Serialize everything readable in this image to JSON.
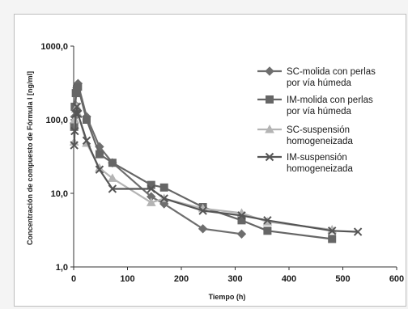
{
  "chart_data": {
    "type": "line",
    "title": "",
    "xlabel": "Tiempo (h)",
    "ylabel": "Concentración de compuesto de Fórmula I [ng/ml]",
    "xlim": [
      0,
      600
    ],
    "ylim": [
      1,
      1000
    ],
    "y_scale": "log",
    "x_ticks": [
      0,
      100,
      200,
      300,
      400,
      500,
      600
    ],
    "x_tick_labels": [
      "0",
      "100",
      "200",
      "300",
      "400",
      "500",
      "600"
    ],
    "y_ticks": [
      1,
      10,
      100,
      1000
    ],
    "y_tick_labels": [
      "1,0",
      "10,0",
      "100,0",
      "1000,0"
    ],
    "grid": false,
    "legend_position": "right",
    "series": [
      {
        "name_lines": [
          "SC-molida con perlas",
          "por vía húmeda"
        ],
        "color": "#6e6e6e",
        "marker": "diamond",
        "points": [
          [
            1,
            90
          ],
          [
            2,
            110
          ],
          [
            3,
            160
          ],
          [
            6,
            270
          ],
          [
            8,
            310
          ],
          [
            24,
            110
          ],
          [
            48,
            43
          ],
          [
            72,
            26
          ],
          [
            144,
            9
          ],
          [
            168,
            7.2
          ],
          [
            240,
            3.3
          ],
          [
            312,
            2.8
          ]
        ]
      },
      {
        "name_lines": [
          "IM-molida con perlas",
          "por vía húmeda"
        ],
        "color": "#666666",
        "marker": "square",
        "points": [
          [
            1,
            80
          ],
          [
            2,
            150
          ],
          [
            4,
            230
          ],
          [
            6,
            260
          ],
          [
            8,
            280
          ],
          [
            24,
            100
          ],
          [
            48,
            34
          ],
          [
            72,
            26
          ],
          [
            144,
            13
          ],
          [
            168,
            12
          ],
          [
            240,
            6.5
          ],
          [
            312,
            4.3
          ],
          [
            360,
            3.1
          ],
          [
            480,
            2.4
          ]
        ]
      },
      {
        "name_lines": [
          "SC-suspensión",
          "homogeneizada"
        ],
        "color": "#b4b4b4",
        "marker": "triangle",
        "points": [
          [
            1,
            50
          ],
          [
            2,
            100
          ],
          [
            4,
            140
          ],
          [
            6,
            150
          ],
          [
            8,
            120
          ],
          [
            24,
            48
          ],
          [
            48,
            22
          ],
          [
            72,
            16
          ],
          [
            144,
            7.5
          ],
          [
            168,
            8.5
          ],
          [
            240,
            6.2
          ],
          [
            312,
            5.4
          ],
          [
            360,
            4.1
          ],
          [
            480,
            3.2
          ]
        ]
      },
      {
        "name_lines": [
          "IM-suspensión",
          "homogeneizada"
        ],
        "color": "#555555",
        "marker": "x",
        "points": [
          [
            1,
            45
          ],
          [
            2,
            70
          ],
          [
            4,
            120
          ],
          [
            6,
            150
          ],
          [
            8,
            120
          ],
          [
            24,
            52
          ],
          [
            48,
            21
          ],
          [
            72,
            11.5
          ],
          [
            144,
            11.5
          ],
          [
            168,
            8.5
          ],
          [
            240,
            5.8
          ],
          [
            312,
            5.0
          ],
          [
            360,
            4.3
          ],
          [
            480,
            3.1
          ],
          [
            528,
            3.0
          ]
        ]
      }
    ]
  }
}
